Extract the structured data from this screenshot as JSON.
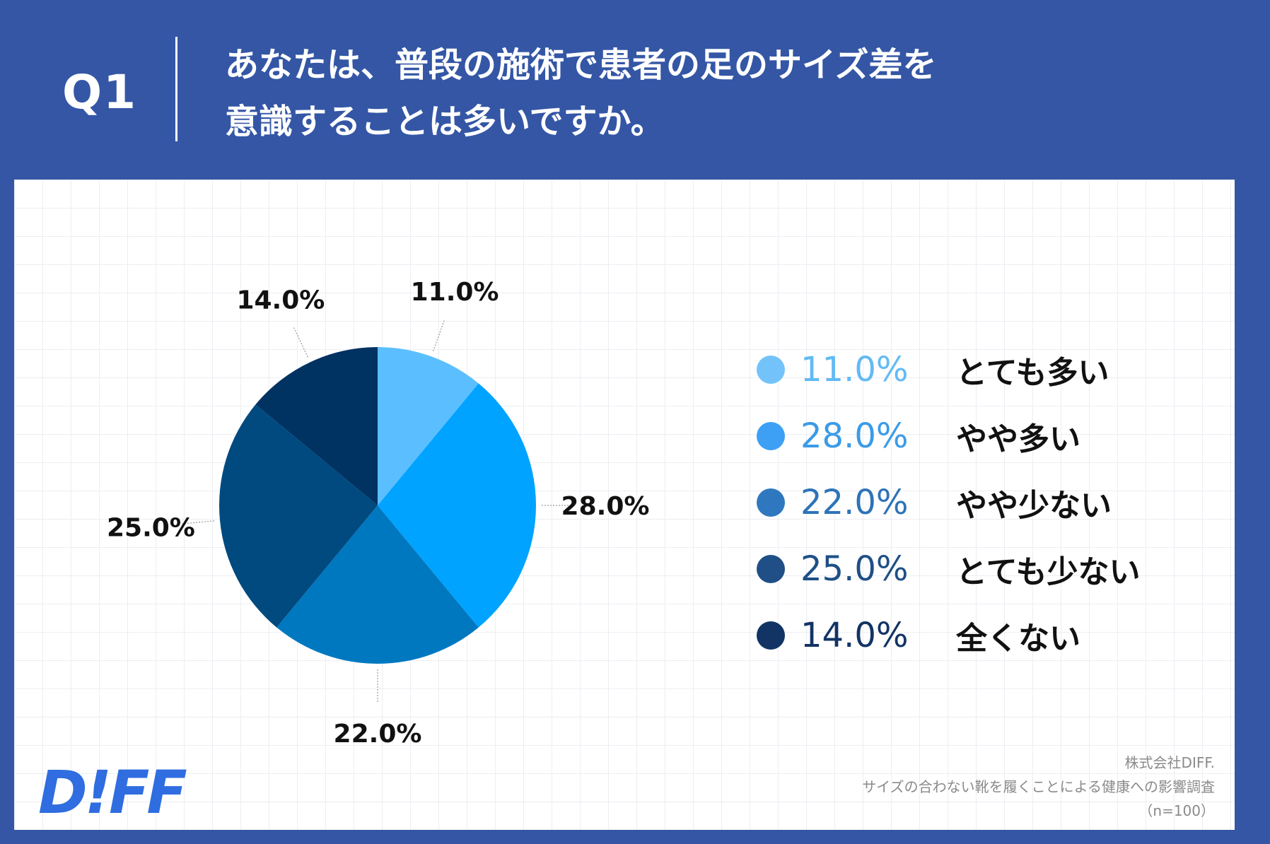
{
  "header": {
    "q_label": "Q1",
    "question_line1": "あなたは、普段の施術で患者の足のサイズ差を",
    "question_line2": "意識することは多いですか。"
  },
  "chart_data": {
    "type": "pie",
    "title": "あなたは、普段の施術で患者の足のサイズ差を意識することは多いですか。",
    "slices": [
      {
        "label": "とても多い",
        "value": 11.0,
        "display": "11.0%",
        "color": "#5bbfff"
      },
      {
        "label": "やや多い",
        "value": 28.0,
        "display": "28.0%",
        "color": "#00a3ff"
      },
      {
        "label": "やや少ない",
        "value": 22.0,
        "display": "22.0%",
        "color": "#0078c0"
      },
      {
        "label": "とても少ない",
        "value": 25.0,
        "display": "25.0%",
        "color": "#004a80"
      },
      {
        "label": "全くない",
        "value": 14.0,
        "display": "14.0%",
        "color": "#003262"
      }
    ],
    "legend_placement": "right"
  },
  "legend": {
    "items": [
      {
        "pct": "11.0%",
        "label": "とても多い",
        "dot_color": "#73c3fa",
        "text_color": "#62baf5"
      },
      {
        "pct": "28.0%",
        "label": "やや多い",
        "dot_color": "#3da0f5",
        "text_color": "#3a9be8"
      },
      {
        "pct": "22.0%",
        "label": "やや少ない",
        "dot_color": "#2f78c0",
        "text_color": "#2d73b8"
      },
      {
        "pct": "25.0%",
        "label": "とても少ない",
        "dot_color": "#1f4f86",
        "text_color": "#1f4f86"
      },
      {
        "pct": "14.0%",
        "label": "全くない",
        "dot_color": "#123464",
        "text_color": "#123464"
      }
    ]
  },
  "logo": {
    "text": "D!FF",
    "color": "#2f6de0"
  },
  "source": {
    "line1": "株式会社DIFF.",
    "line2": "サイズの合わない靴を履くことによる健康への影響調査",
    "line3": "（n=100）"
  }
}
